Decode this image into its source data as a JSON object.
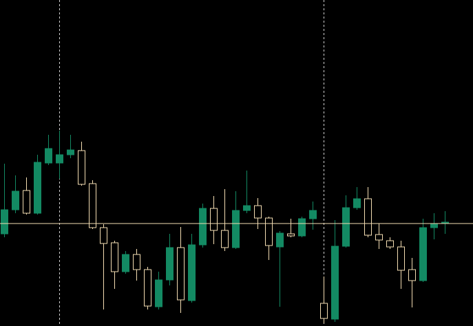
{
  "chart_data": {
    "type": "candlestick",
    "up_color": "#138a63",
    "down_color": "#f5deb3",
    "ylim": [
      0,
      474
    ],
    "price_line": 149,
    "open": [
      134,
      169,
      197,
      164,
      237,
      237,
      249,
      255,
      207,
      143,
      121,
      79,
      104,
      82,
      28,
      67,
      114,
      37,
      118,
      171,
      139,
      114,
      168,
      175,
      157,
      115,
      134,
      131,
      156,
      33,
      10,
      116,
      172,
      185,
      133,
      124,
      115,
      82,
      66,
      143,
      149
    ],
    "high": [
      236,
      219,
      216,
      249,
      278,
      284,
      278,
      268,
      212,
      148,
      124,
      109,
      112,
      86,
      79,
      134,
      144,
      134,
      178,
      189,
      199,
      196,
      226,
      186,
      159,
      138,
      156,
      159,
      181,
      72,
      154,
      190,
      202,
      202,
      149,
      129,
      124,
      99,
      156,
      164,
      167
    ],
    "low": [
      129,
      164,
      162,
      162,
      234,
      214,
      244,
      204,
      141,
      24,
      54,
      76,
      66,
      24,
      24,
      59,
      19,
      34,
      114,
      119,
      109,
      112,
      164,
      141,
      96,
      28,
      129,
      129,
      140,
      4,
      6,
      114,
      169,
      129,
      112,
      112,
      54,
      27,
      64,
      126,
      134
    ],
    "close": [
      169,
      196,
      164,
      238,
      258,
      249,
      256,
      206,
      143,
      120,
      79,
      104,
      82,
      29,
      67,
      114,
      38,
      118,
      171,
      139,
      114,
      168,
      175,
      157,
      117,
      135,
      131,
      156,
      168,
      11,
      116,
      172,
      185,
      132,
      125,
      115,
      81,
      66,
      143,
      149,
      151
    ]
  }
}
